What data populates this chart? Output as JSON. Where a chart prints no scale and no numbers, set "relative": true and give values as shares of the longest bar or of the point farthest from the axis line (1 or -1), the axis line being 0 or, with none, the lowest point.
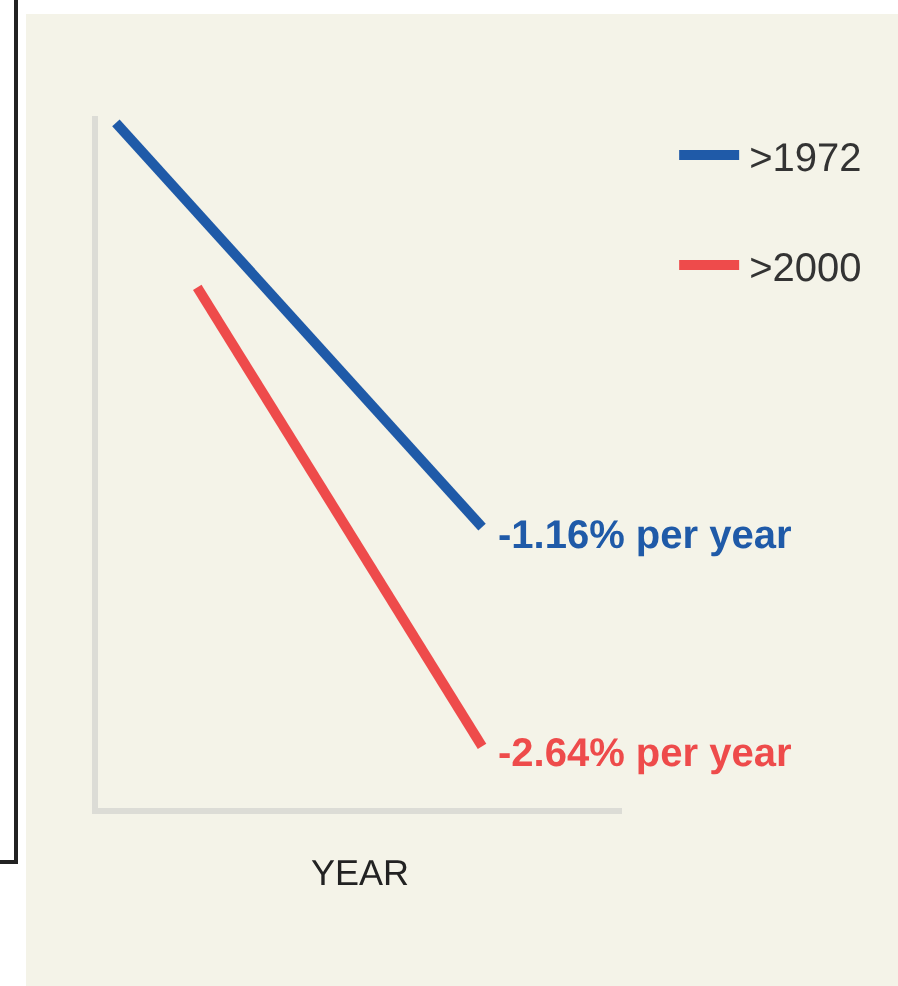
{
  "chart_data": {
    "type": "line",
    "relative": true,
    "xlabel": "YEAR",
    "categories": [
      null,
      null,
      null,
      null,
      null,
      null,
      null,
      null,
      null,
      null
    ],
    "series": [
      {
        "name": ">1972",
        "color": "#1f5aa8",
        "values": [
          1,
          null,
          null,
          null,
          null,
          null,
          null,
          null,
          null,
          0.41
        ]
      },
      {
        "name": ">2000",
        "color": "#ee4b4b",
        "values": [
          null,
          null,
          0.76,
          null,
          null,
          null,
          null,
          null,
          null,
          0.09
        ]
      }
    ],
    "annotations": [
      "-1.16% per year",
      "-2.64% per year"
    ],
    "legend": "top right",
    "line_style": "solid"
  }
}
